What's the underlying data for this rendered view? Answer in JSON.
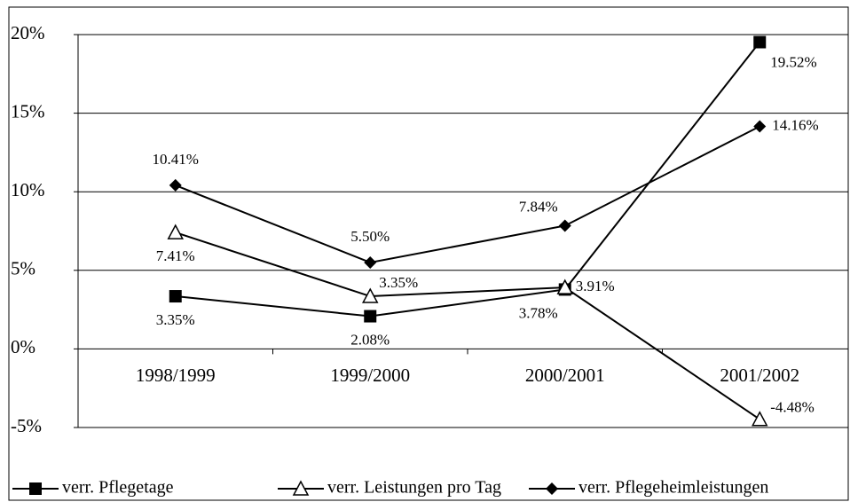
{
  "chart_data": {
    "type": "line",
    "categories": [
      "1998/1999",
      "1999/2000",
      "2000/2001",
      "2001/2002"
    ],
    "series": [
      {
        "name": "verr. Pflegetage",
        "color": "#000000",
        "marker": "square",
        "values": [
          3.35,
          2.08,
          3.78,
          19.52
        ],
        "value_labels": [
          "3.35%",
          "2.08%",
          "3.78%",
          "19.52%"
        ]
      },
      {
        "name": "verr. Leistungen pro Tag",
        "color": "#000000",
        "marker": "triangle",
        "values": [
          7.41,
          3.35,
          3.91,
          -4.48
        ],
        "value_labels": [
          "7.41%",
          "3.35%",
          "3.91%",
          "-4.48%"
        ]
      },
      {
        "name": "verr. Pflegeheimleistungen",
        "color": "#000000",
        "marker": "diamond",
        "values": [
          10.41,
          5.5,
          7.84,
          14.16
        ],
        "value_labels": [
          "10.41%",
          "5.50%",
          "7.84%",
          "14.16%"
        ]
      }
    ],
    "ylim": [
      -5,
      20
    ],
    "yticks": [
      {
        "value": -5,
        "label": "-5%"
      },
      {
        "value": 0,
        "label": "0%"
      },
      {
        "value": 5,
        "label": "5%"
      },
      {
        "value": 10,
        "label": "10%"
      },
      {
        "value": 15,
        "label": "15%"
      },
      {
        "value": 20,
        "label": "20%"
      }
    ],
    "grid": true,
    "legend": "bottom"
  }
}
